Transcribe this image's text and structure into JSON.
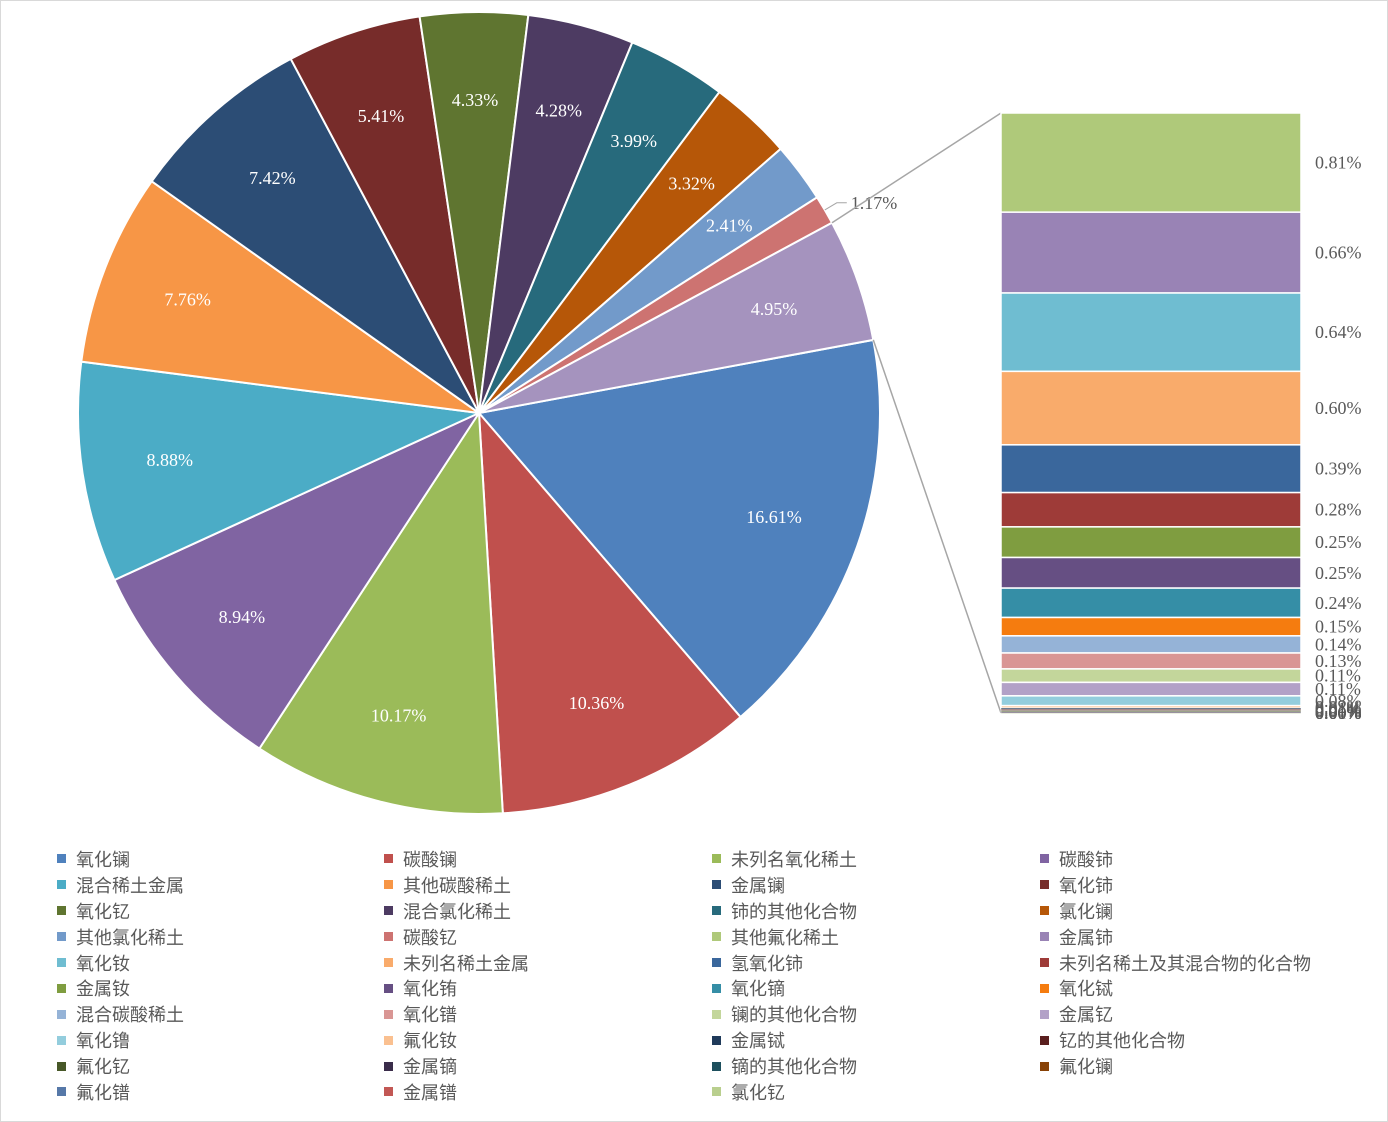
{
  "chart_data": {
    "type": "pie",
    "subtype": "bar-of-pie",
    "slices": [
      {
        "label": "氧化镧",
        "value": 16.61,
        "display": "16.61%",
        "color": "#4F81BD"
      },
      {
        "label": "碳酸镧",
        "value": 10.36,
        "display": "10.36%",
        "color": "#C0504D"
      },
      {
        "label": "未列名氧化稀土",
        "value": 10.17,
        "display": "10.17%",
        "color": "#9BBB59"
      },
      {
        "label": "碳酸铈",
        "value": 8.94,
        "display": "8.94%",
        "color": "#8064A2"
      },
      {
        "label": "混合稀土金属",
        "value": 8.88,
        "display": "8.88%",
        "color": "#4BACC6"
      },
      {
        "label": "其他碳酸稀土",
        "value": 7.76,
        "display": "7.76%",
        "color": "#F79646"
      },
      {
        "label": "金属镧",
        "value": 7.42,
        "display": "7.42%",
        "color": "#2C4D75"
      },
      {
        "label": "氧化铈",
        "value": 5.41,
        "display": "5.41%",
        "color": "#772C2A"
      },
      {
        "label": "氧化钇",
        "value": 4.33,
        "display": "4.33%",
        "color": "#5F7530"
      },
      {
        "label": "混合氯化稀土",
        "value": 4.28,
        "display": "4.28%",
        "color": "#4D3B62"
      },
      {
        "label": "铈的其他化合物",
        "value": 3.99,
        "display": "3.99%",
        "color": "#276A7C"
      },
      {
        "label": "氯化镧",
        "value": 3.32,
        "display": "3.32%",
        "color": "#B65708"
      },
      {
        "label": "其他氯化稀土",
        "value": 2.41,
        "display": "2.41%",
        "color": "#729ACA"
      },
      {
        "label": "碳酸钇",
        "value": 1.17,
        "display": "1.17%",
        "color": "#CD7371"
      }
    ],
    "other_slice": {
      "value": 4.95,
      "display": "4.95%",
      "color": "#A593BE"
    },
    "bar_items": [
      {
        "label": "其他氟化稀土",
        "value": 0.81,
        "display": "0.81%",
        "color": "#AFC97A"
      },
      {
        "label": "金属铈",
        "value": 0.66,
        "display": "0.66%",
        "color": "#9983B5"
      },
      {
        "label": "氧化钕",
        "value": 0.64,
        "display": "0.64%",
        "color": "#6FBDD1"
      },
      {
        "label": "未列名稀土金属",
        "value": 0.6,
        "display": "0.60%",
        "color": "#F9AB6B"
      },
      {
        "label": "氢氧化铈",
        "value": 0.39,
        "display": "0.39%",
        "color": "#3A679C"
      },
      {
        "label": "未列名稀土及其混合物的化合物",
        "value": 0.28,
        "display": "0.28%",
        "color": "#9E3B38"
      },
      {
        "label": "金属钕",
        "value": 0.25,
        "display": "0.25%",
        "color": "#7F9D40"
      },
      {
        "label": "氧化铕",
        "value": 0.25,
        "display": "0.25%",
        "color": "#664F83"
      },
      {
        "label": "氧化镝",
        "value": 0.24,
        "display": "0.24%",
        "color": "#358EA6"
      },
      {
        "label": "氧化铽",
        "value": 0.15,
        "display": "0.15%",
        "color": "#F57C0F"
      },
      {
        "label": "混合碳酸稀土",
        "value": 0.14,
        "display": "0.14%",
        "color": "#95B3D7"
      },
      {
        "label": "氧化镨",
        "value": 0.13,
        "display": "0.13%",
        "color": "#D99694"
      },
      {
        "label": "镧的其他化合物",
        "value": 0.11,
        "display": "0.11%",
        "color": "#C3D69B"
      },
      {
        "label": "金属钇",
        "value": 0.11,
        "display": "0.11%",
        "color": "#B2A1C7"
      },
      {
        "label": "氧化镥",
        "value": 0.08,
        "display": "0.08%",
        "color": "#93CDDD"
      },
      {
        "label": "氟化钕",
        "value": 0.02,
        "display": "0.02%",
        "color": "#FAC090"
      },
      {
        "label": "金属铽",
        "value": 0.01,
        "display": "0.01%",
        "color": "#1F3A5A"
      },
      {
        "label": "钇的其他化合物",
        "value": 0.01,
        "display": "0.01%",
        "color": "#5A1F1E"
      },
      {
        "label": "氟化钇",
        "value": 0.01,
        "display": "0.01%",
        "color": "#475828"
      },
      {
        "label": "金属镝",
        "value": 0.01,
        "display": "0.01%",
        "color": "#3A2C4A"
      },
      {
        "label": "镝的其他化合物",
        "value": 0.0,
        "display": "0.00%",
        "color": "#1D4F5D"
      },
      {
        "label": "氟化镧",
        "value": 0.0,
        "display": "0.00%",
        "color": "#884206"
      },
      {
        "label": "氟化镨",
        "value": 0.0,
        "display": "0.00%",
        "color": "#5678A8"
      },
      {
        "label": "金属镨",
        "value": 0.0,
        "display": "0.00%",
        "color": "#C25754"
      },
      {
        "label": "氯化钇",
        "value": 0.0,
        "display": "0.00%",
        "color": "#B9CF8E"
      }
    ],
    "legend": [
      {
        "label": "氧化镧",
        "color": "#4F81BD"
      },
      {
        "label": "碳酸镧",
        "color": "#C0504D"
      },
      {
        "label": "未列名氧化稀土",
        "color": "#9BBB59"
      },
      {
        "label": "碳酸铈",
        "color": "#8064A2"
      },
      {
        "label": "混合稀土金属",
        "color": "#4BACC6"
      },
      {
        "label": "其他碳酸稀土",
        "color": "#F79646"
      },
      {
        "label": "金属镧",
        "color": "#2C4D75"
      },
      {
        "label": "氧化铈",
        "color": "#772C2A"
      },
      {
        "label": "氧化钇",
        "color": "#5F7530"
      },
      {
        "label": "混合氯化稀土",
        "color": "#4D3B62"
      },
      {
        "label": "铈的其他化合物",
        "color": "#276A7C"
      },
      {
        "label": "氯化镧",
        "color": "#B65708"
      },
      {
        "label": "其他氯化稀土",
        "color": "#729ACA"
      },
      {
        "label": "碳酸钇",
        "color": "#CD7371"
      },
      {
        "label": "其他氟化稀土",
        "color": "#AFC97A"
      },
      {
        "label": "金属铈",
        "color": "#9983B5"
      },
      {
        "label": "氧化钕",
        "color": "#6FBDD1"
      },
      {
        "label": "未列名稀土金属",
        "color": "#F9AB6B"
      },
      {
        "label": "氢氧化铈",
        "color": "#3A679C"
      },
      {
        "label": "未列名稀土及其混合物的化合物",
        "color": "#9E3B38"
      },
      {
        "label": "金属钕",
        "color": "#7F9D40"
      },
      {
        "label": "氧化铕",
        "color": "#664F83"
      },
      {
        "label": "氧化镝",
        "color": "#358EA6"
      },
      {
        "label": "氧化铽",
        "color": "#F57C0F"
      },
      {
        "label": "混合碳酸稀土",
        "color": "#95B3D7"
      },
      {
        "label": "氧化镨",
        "color": "#D99694"
      },
      {
        "label": "镧的其他化合物",
        "color": "#C3D69B"
      },
      {
        "label": "金属钇",
        "color": "#B2A1C7"
      },
      {
        "label": "氧化镥",
        "color": "#93CDDD"
      },
      {
        "label": "氟化钕",
        "color": "#FAC090"
      },
      {
        "label": "金属铽",
        "color": "#1F3A5A"
      },
      {
        "label": "钇的其他化合物",
        "color": "#5A1F1E"
      },
      {
        "label": "氟化钇",
        "color": "#475828"
      },
      {
        "label": "金属镝",
        "color": "#3A2C4A"
      },
      {
        "label": "镝的其他化合物",
        "color": "#1D4F5D"
      },
      {
        "label": "氟化镧",
        "color": "#884206"
      },
      {
        "label": "氟化镨",
        "color": "#5678A8"
      },
      {
        "label": "金属镨",
        "color": "#C25754"
      },
      {
        "label": "氯化钇",
        "color": "#B9CF8E"
      }
    ]
  }
}
